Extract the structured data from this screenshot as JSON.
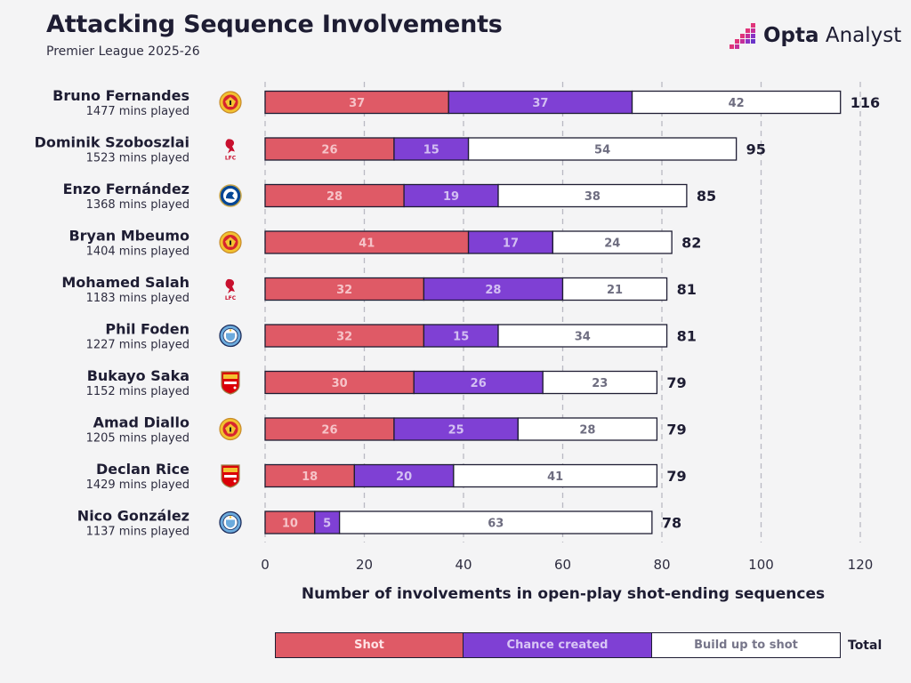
{
  "header": {
    "title": "Attacking Sequence Involvements",
    "subtitle": "Premier League 2025-26",
    "brand_bold": "Opta",
    "brand_light": "Analyst"
  },
  "colors": {
    "shot": "#df5a66",
    "chance": "#7f40d4",
    "buildup": "#ffffff",
    "outline": "#1e1d33",
    "gridline": "#b9b9c2"
  },
  "chart_data": {
    "type": "bar",
    "orientation": "horizontal",
    "stacked": true,
    "title": "Attacking Sequence Involvements",
    "subtitle": "Premier League 2025-26",
    "xlabel": "Number of involvements in open-play shot-ending sequences",
    "xlim": [
      0,
      120
    ],
    "xticks": [
      0,
      20,
      40,
      60,
      80,
      100,
      120
    ],
    "grid": true,
    "players": [
      {
        "name": "Bruno Fernandes",
        "mins": "1477 mins played",
        "club_icon": "man-utd-crest-icon",
        "shot": 37,
        "chance": 37,
        "buildup": 42,
        "total": 116
      },
      {
        "name": "Dominik Szoboszlai",
        "mins": "1523 mins played",
        "club_icon": "liverpool-crest-icon",
        "shot": 26,
        "chance": 15,
        "buildup": 54,
        "total": 95
      },
      {
        "name": "Enzo Fernández",
        "mins": "1368 mins played",
        "club_icon": "chelsea-crest-icon",
        "shot": 28,
        "chance": 19,
        "buildup": 38,
        "total": 85
      },
      {
        "name": "Bryan Mbeumo",
        "mins": "1404 mins played",
        "club_icon": "man-utd-crest-icon",
        "shot": 41,
        "chance": 17,
        "buildup": 24,
        "total": 82
      },
      {
        "name": "Mohamed Salah",
        "mins": "1183 mins played",
        "club_icon": "liverpool-crest-icon",
        "shot": 32,
        "chance": 28,
        "buildup": 21,
        "total": 81
      },
      {
        "name": "Phil Foden",
        "mins": "1227 mins played",
        "club_icon": "man-city-crest-icon",
        "shot": 32,
        "chance": 15,
        "buildup": 34,
        "total": 81
      },
      {
        "name": "Bukayo Saka",
        "mins": "1152 mins played",
        "club_icon": "arsenal-crest-icon",
        "shot": 30,
        "chance": 26,
        "buildup": 23,
        "total": 79
      },
      {
        "name": "Amad Diallo",
        "mins": "1205 mins played",
        "club_icon": "man-utd-crest-icon",
        "shot": 26,
        "chance": 25,
        "buildup": 28,
        "total": 79
      },
      {
        "name": "Declan Rice",
        "mins": "1429 mins played",
        "club_icon": "arsenal-crest-icon",
        "shot": 18,
        "chance": 20,
        "buildup": 41,
        "total": 79
      },
      {
        "name": "Nico González",
        "mins": "1137 mins played",
        "club_icon": "man-city-crest-icon",
        "shot": 10,
        "chance": 5,
        "buildup": 63,
        "total": 78
      }
    ],
    "legend": {
      "shot": "Shot",
      "chance": "Chance created",
      "buildup": "Build up to shot",
      "total": "Total"
    }
  }
}
